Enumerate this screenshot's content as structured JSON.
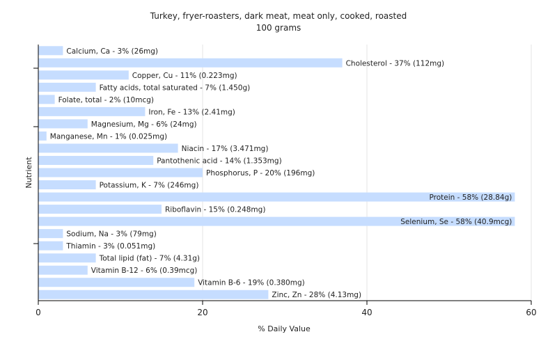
{
  "chart_data": {
    "type": "bar",
    "orientation": "horizontal",
    "title": "Turkey, fryer-roasters, dark meat, meat only, cooked, roasted",
    "subtitle": "100 grams",
    "xlabel": "% Daily Value",
    "ylabel": "Nutrient",
    "xlim": [
      0,
      60
    ],
    "xticks": [
      0,
      20,
      40,
      60
    ],
    "grid": true,
    "bar_color": "#c6ddff",
    "categories": [
      "Calcium, Ca",
      "Cholesterol",
      "Copper, Cu",
      "Fatty acids, total saturated",
      "Folate, total",
      "Iron, Fe",
      "Magnesium, Mg",
      "Manganese, Mn",
      "Niacin",
      "Pantothenic acid",
      "Phosphorus, P",
      "Potassium, K",
      "Protein",
      "Riboflavin",
      "Selenium, Se",
      "Sodium, Na",
      "Thiamin",
      "Total lipid (fat)",
      "Vitamin B-12",
      "Vitamin B-6",
      "Zinc, Zn"
    ],
    "values": [
      3,
      37,
      11,
      7,
      2,
      13,
      6,
      1,
      17,
      14,
      20,
      7,
      58,
      15,
      58,
      3,
      3,
      7,
      6,
      19,
      28
    ],
    "labels": [
      "Calcium, Ca - 3% (26mg)",
      "Cholesterol - 37% (112mg)",
      "Copper, Cu - 11% (0.223mg)",
      "Fatty acids, total saturated - 7% (1.450g)",
      "Folate, total - 2% (10mcg)",
      "Iron, Fe - 13% (2.41mg)",
      "Magnesium, Mg - 6% (24mg)",
      "Manganese, Mn - 1% (0.025mg)",
      "Niacin - 17% (3.471mg)",
      "Pantothenic acid - 14% (1.353mg)",
      "Phosphorus, P - 20% (196mg)",
      "Potassium, K - 7% (246mg)",
      "Protein - 58% (28.84g)",
      "Riboflavin - 15% (0.248mg)",
      "Selenium, Se - 58% (40.9mcg)",
      "Sodium, Na - 3% (79mg)",
      "Thiamin - 3% (0.051mg)",
      "Total lipid (fat) - 7% (4.31g)",
      "Vitamin B-12 - 6% (0.39mcg)",
      "Vitamin B-6 - 19% (0.380mg)",
      "Zinc, Zn - 28% (4.13mg)"
    ]
  }
}
